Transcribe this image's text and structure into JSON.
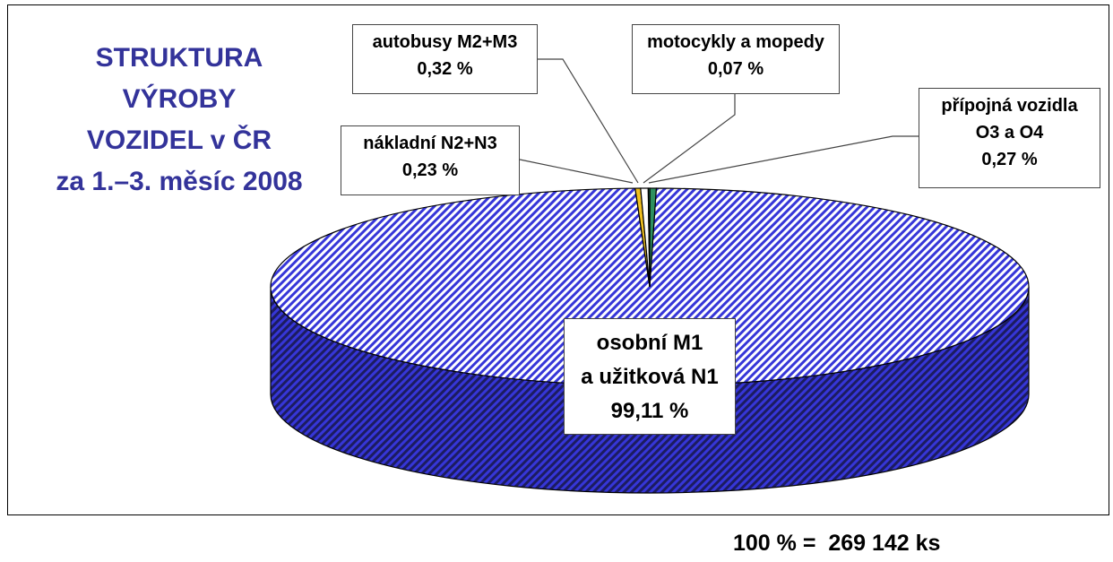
{
  "chart_data": {
    "type": "pie",
    "title": [
      "STRUKTURA",
      "VÝROBY",
      "VOZIDEL v ČR",
      "za 1.–3. měsíc 2008"
    ],
    "categories": [
      "osobní M1\na užitková N1",
      "nákladní N2+N3",
      "autobusy M2+M3",
      "motocykly a mopedy",
      "přípojná vozidla\nO3 a O4"
    ],
    "values": [
      99.11,
      0.23,
      0.32,
      0.07,
      0.27
    ],
    "value_labels": [
      "99,11 %",
      "0,23 %",
      "0,32 %",
      "0,07 %",
      "0,27 %"
    ],
    "colors": [
      "#3636d8",
      "#f0c020",
      "#ffffff",
      "#207050",
      "#2e9060"
    ],
    "note": "100 % =  269 142 ks"
  }
}
